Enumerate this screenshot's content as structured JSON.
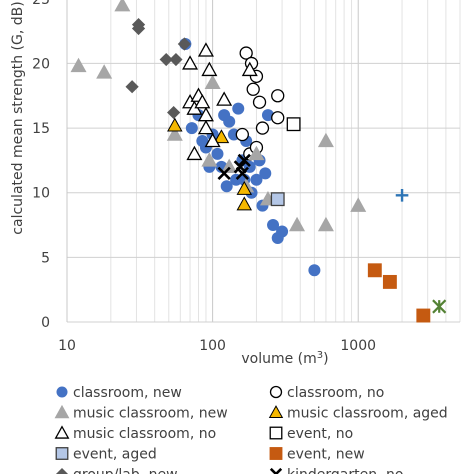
{
  "chart_data": {
    "type": "scatter",
    "x_scale": "log",
    "xlabel": "volume (m",
    "xlabel_sup": "3",
    "xlabel_close": ")",
    "ylabel": "calculated mean strength (G, dB)",
    "xlim": [
      10,
      5000
    ],
    "ylim": [
      0,
      28
    ],
    "x_ticks": [
      "10",
      "100",
      "1000"
    ],
    "y_ticks": [
      "0",
      "5",
      "10",
      "15",
      "20",
      "25"
    ],
    "grid": true,
    "legend_position": "bottom",
    "series": [
      {
        "name": "classroom, new",
        "marker": "circle",
        "color": "#4472c4",
        "points": [
          [
            65,
            21.5
          ],
          [
            72,
            15
          ],
          [
            80,
            16
          ],
          [
            85,
            14
          ],
          [
            90,
            13.5
          ],
          [
            95,
            12
          ],
          [
            100,
            14.5
          ],
          [
            108,
            13
          ],
          [
            115,
            12
          ],
          [
            120,
            16
          ],
          [
            125,
            10.5
          ],
          [
            130,
            15.5
          ],
          [
            140,
            14.5
          ],
          [
            145,
            11
          ],
          [
            150,
            16.5
          ],
          [
            160,
            12.5
          ],
          [
            165,
            11
          ],
          [
            170,
            14
          ],
          [
            180,
            12
          ],
          [
            185,
            10
          ],
          [
            195,
            13
          ],
          [
            200,
            11
          ],
          [
            210,
            12.5
          ],
          [
            220,
            9
          ],
          [
            230,
            11.5
          ],
          [
            240,
            16
          ],
          [
            260,
            7.5
          ],
          [
            280,
            6.5
          ],
          [
            300,
            7
          ],
          [
            500,
            4
          ]
        ]
      },
      {
        "name": "classroom, no",
        "marker": "circle-open",
        "color": "#000000",
        "points": [
          [
            170,
            20.8
          ],
          [
            185,
            20
          ],
          [
            190,
            18
          ],
          [
            200,
            19
          ],
          [
            210,
            17
          ],
          [
            220,
            15
          ],
          [
            180,
            13
          ],
          [
            200,
            13.5
          ],
          [
            280,
            17.5
          ],
          [
            280,
            15.8
          ],
          [
            160,
            14.5
          ]
        ]
      },
      {
        "name": "music classroom, new",
        "marker": "triangle",
        "color": "#a6a6a6",
        "points": [
          [
            12,
            19.8
          ],
          [
            18,
            19.3
          ],
          [
            24,
            24.5
          ],
          [
            55,
            14.5
          ],
          [
            95,
            12.5
          ],
          [
            100,
            18.5
          ],
          [
            130,
            12
          ],
          [
            170,
            10.5
          ],
          [
            200,
            13
          ],
          [
            240,
            9.5
          ],
          [
            380,
            7.5
          ],
          [
            600,
            14
          ],
          [
            600,
            7.5
          ],
          [
            1000,
            9
          ]
        ]
      },
      {
        "name": "music classroom, aged",
        "marker": "triangle",
        "color": "#f5b800",
        "points": [
          [
            55,
            15.2
          ],
          [
            115,
            14.3
          ],
          [
            165,
            10.3
          ],
          [
            165,
            9.1
          ]
        ]
      },
      {
        "name": "music classroom, no",
        "marker": "triangle-open",
        "color": "#000000",
        "points": [
          [
            70,
            20
          ],
          [
            90,
            21
          ],
          [
            95,
            19.5
          ],
          [
            70,
            17
          ],
          [
            75,
            16.5
          ],
          [
            80,
            17.5
          ],
          [
            85,
            17
          ],
          [
            90,
            15
          ],
          [
            120,
            17.2
          ],
          [
            75,
            13
          ],
          [
            100,
            14
          ],
          [
            180,
            19.5
          ],
          [
            90,
            16
          ]
        ]
      },
      {
        "name": "event, no",
        "marker": "square-open",
        "color": "#000000",
        "points": [
          [
            360,
            15.3
          ]
        ]
      },
      {
        "name": "event, aged",
        "marker": "square",
        "color": "#b4c7e7",
        "points": [
          [
            280,
            9.5
          ]
        ]
      },
      {
        "name": "event, new",
        "marker": "square",
        "color": "#c55a11",
        "points": [
          [
            1300,
            4
          ],
          [
            1650,
            3.1
          ],
          [
            2800,
            0.5
          ]
        ]
      },
      {
        "name": "group/lab, new",
        "marker": "diamond",
        "color": "#595959",
        "points": [
          [
            32,
            26
          ],
          [
            32,
            25.5
          ],
          [
            31,
            23
          ],
          [
            31,
            22.7
          ],
          [
            28,
            18.2
          ],
          [
            48,
            20.3
          ],
          [
            56,
            20.3
          ],
          [
            54,
            16.2
          ],
          [
            64,
            21.5
          ]
        ]
      },
      {
        "name": "kindergarten, no",
        "marker": "x",
        "color": "#000000",
        "points": [
          [
            120,
            11.5
          ],
          [
            155,
            12
          ],
          [
            160,
            11.5
          ],
          [
            165,
            12.5
          ]
        ]
      },
      {
        "name": "",
        "marker": "plus",
        "color": "#2e75b6",
        "points": [
          [
            2000,
            9.8
          ]
        ]
      },
      {
        "name": "",
        "marker": "asterisk",
        "color": "#548235",
        "points": [
          [
            3600,
            1.2
          ]
        ]
      }
    ]
  }
}
